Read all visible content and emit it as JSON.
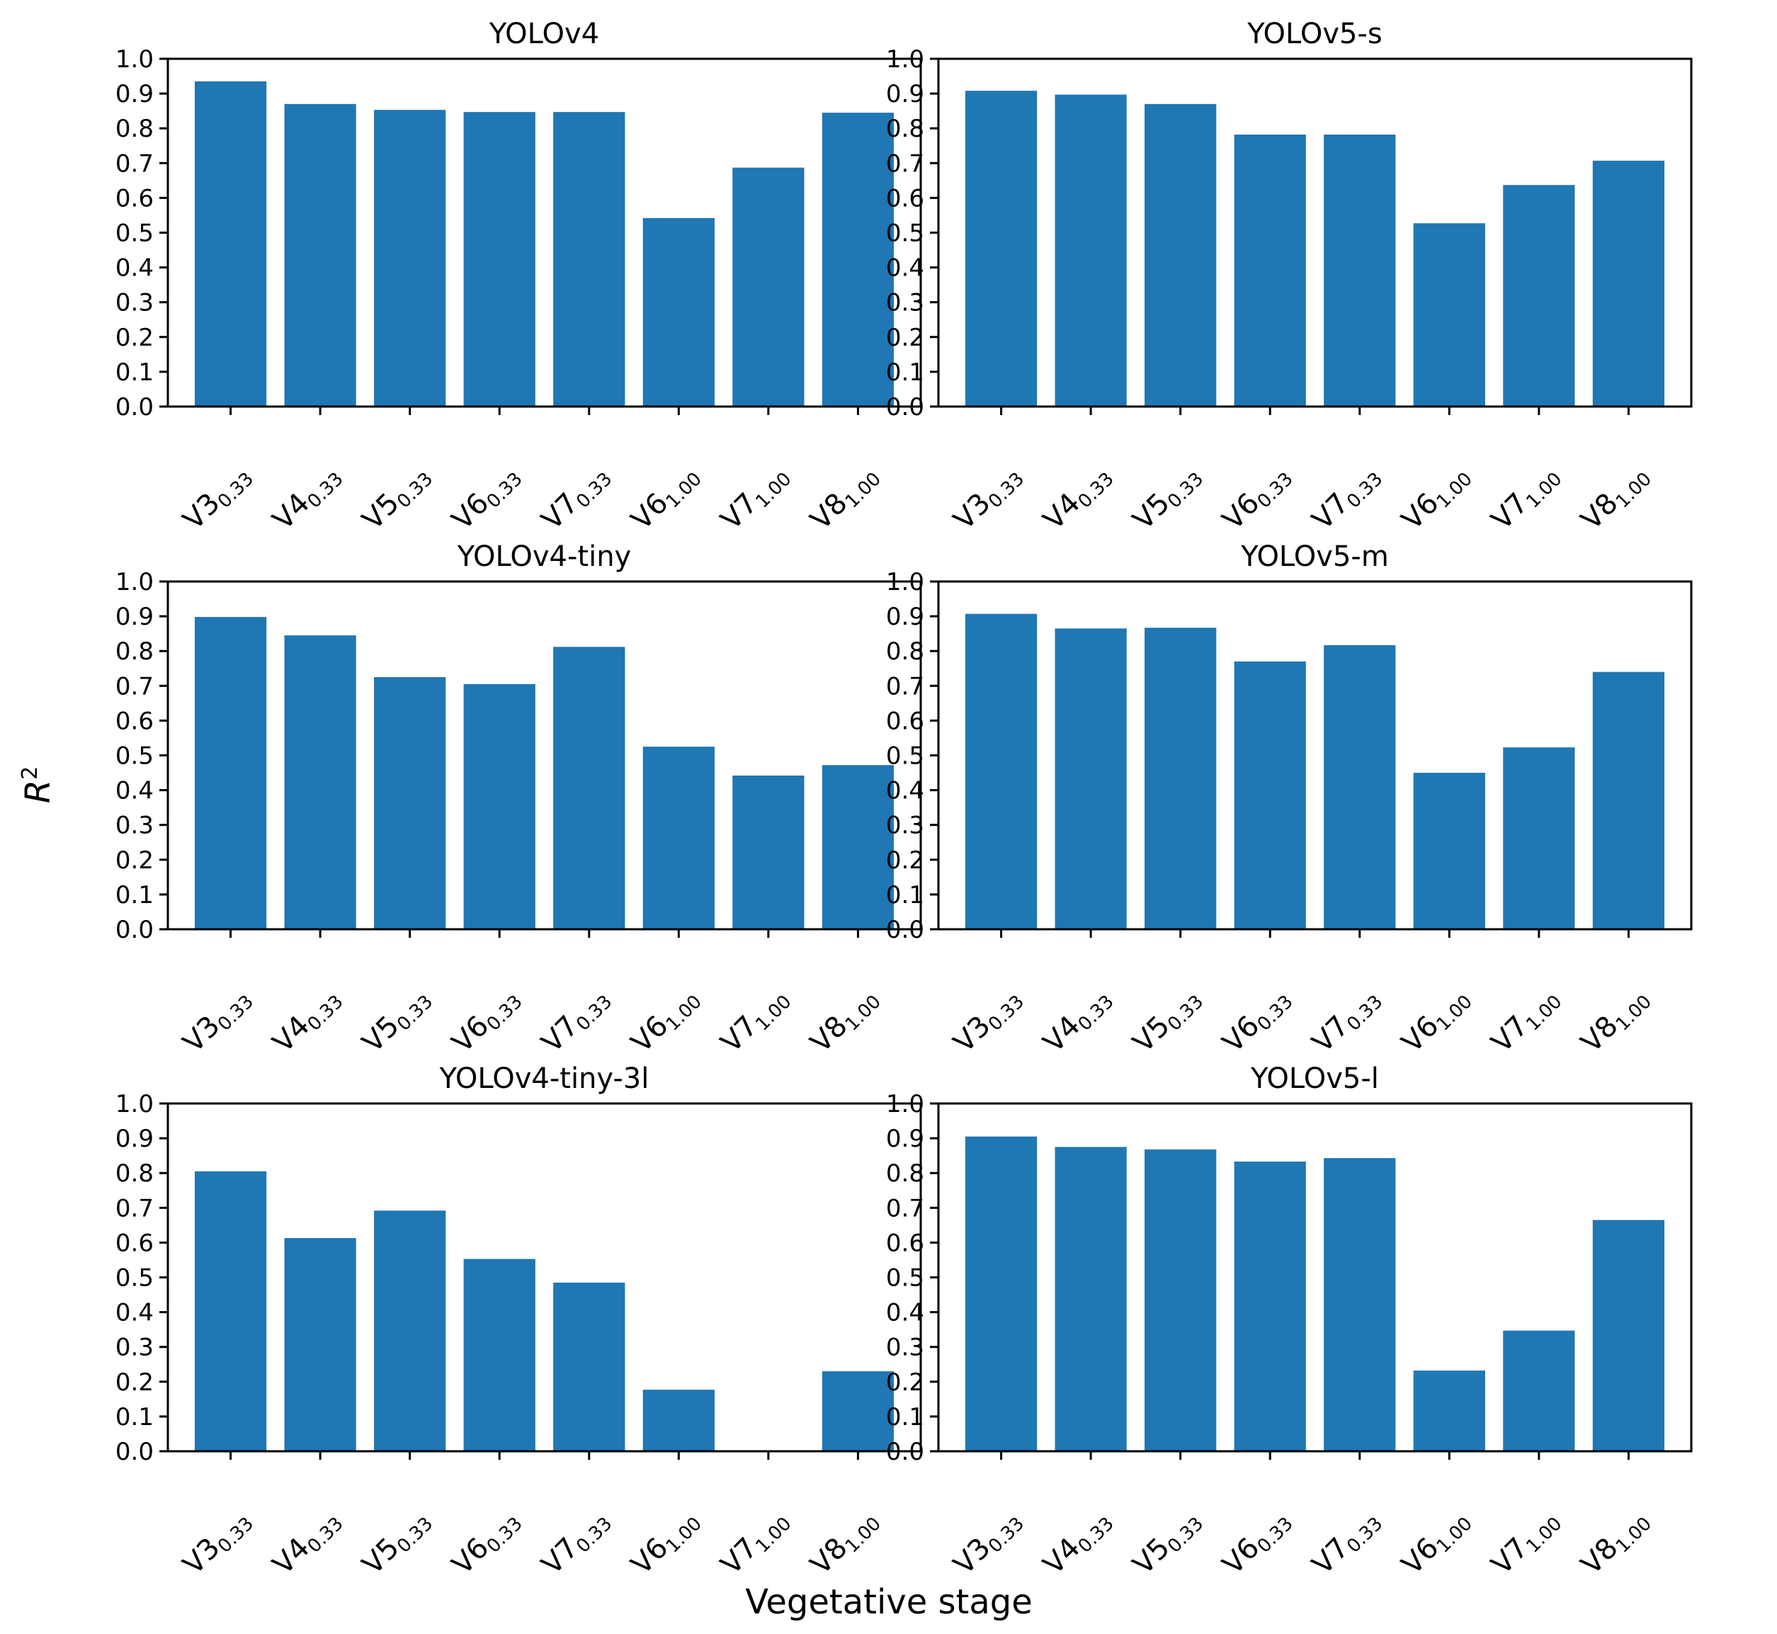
{
  "figure": {
    "xlabel": "Vegetative stage",
    "ylabel_base": "R",
    "ylabel_sup": "2",
    "bar_color": "#1f77b4"
  },
  "chart_data": [
    {
      "type": "bar",
      "title": "YOLOv4",
      "categories": [
        {
          "main": "V3",
          "sub": "0.33"
        },
        {
          "main": "V4",
          "sub": "0.33"
        },
        {
          "main": "V5",
          "sub": "0.33"
        },
        {
          "main": "V6",
          "sub": "0.33"
        },
        {
          "main": "V7",
          "sub": "0.33"
        },
        {
          "main": "V6",
          "sub": "1.00"
        },
        {
          "main": "V7",
          "sub": "1.00"
        },
        {
          "main": "V8",
          "sub": "1.00"
        }
      ],
      "values": [
        0.935,
        0.87,
        0.853,
        0.847,
        0.847,
        0.542,
        0.687,
        0.845
      ],
      "ylim": [
        0,
        1.0
      ],
      "yticks": [
        "0.0",
        "0.1",
        "0.2",
        "0.3",
        "0.4",
        "0.5",
        "0.6",
        "0.7",
        "0.8",
        "0.9",
        "1.0"
      ],
      "xlabel": "",
      "ylabel": "R2"
    },
    {
      "type": "bar",
      "title": "YOLOv5-s",
      "categories": [
        {
          "main": "V3",
          "sub": "0.33"
        },
        {
          "main": "V4",
          "sub": "0.33"
        },
        {
          "main": "V5",
          "sub": "0.33"
        },
        {
          "main": "V6",
          "sub": "0.33"
        },
        {
          "main": "V7",
          "sub": "0.33"
        },
        {
          "main": "V6",
          "sub": "1.00"
        },
        {
          "main": "V7",
          "sub": "1.00"
        },
        {
          "main": "V8",
          "sub": "1.00"
        }
      ],
      "values": [
        0.908,
        0.897,
        0.87,
        0.782,
        0.782,
        0.527,
        0.637,
        0.707
      ],
      "ylim": [
        0,
        1.0
      ],
      "yticks": [
        "0.0",
        "0.1",
        "0.2",
        "0.3",
        "0.4",
        "0.5",
        "0.6",
        "0.7",
        "0.8",
        "0.9",
        "1.0"
      ],
      "xlabel": "",
      "ylabel": "R2"
    },
    {
      "type": "bar",
      "title": "YOLOv4-tiny",
      "categories": [
        {
          "main": "V3",
          "sub": "0.33"
        },
        {
          "main": "V4",
          "sub": "0.33"
        },
        {
          "main": "V5",
          "sub": "0.33"
        },
        {
          "main": "V6",
          "sub": "0.33"
        },
        {
          "main": "V7",
          "sub": "0.33"
        },
        {
          "main": "V6",
          "sub": "1.00"
        },
        {
          "main": "V7",
          "sub": "1.00"
        },
        {
          "main": "V8",
          "sub": "1.00"
        }
      ],
      "values": [
        0.898,
        0.845,
        0.725,
        0.705,
        0.812,
        0.525,
        0.442,
        0.472
      ],
      "ylim": [
        0,
        1.0
      ],
      "yticks": [
        "0.0",
        "0.1",
        "0.2",
        "0.3",
        "0.4",
        "0.5",
        "0.6",
        "0.7",
        "0.8",
        "0.9",
        "1.0"
      ],
      "xlabel": "",
      "ylabel": "R2"
    },
    {
      "type": "bar",
      "title": "YOLOv5-m",
      "categories": [
        {
          "main": "V3",
          "sub": "0.33"
        },
        {
          "main": "V4",
          "sub": "0.33"
        },
        {
          "main": "V5",
          "sub": "0.33"
        },
        {
          "main": "V6",
          "sub": "0.33"
        },
        {
          "main": "V7",
          "sub": "0.33"
        },
        {
          "main": "V6",
          "sub": "1.00"
        },
        {
          "main": "V7",
          "sub": "1.00"
        },
        {
          "main": "V8",
          "sub": "1.00"
        }
      ],
      "values": [
        0.907,
        0.865,
        0.867,
        0.77,
        0.817,
        0.45,
        0.523,
        0.74
      ],
      "ylim": [
        0,
        1.0
      ],
      "yticks": [
        "0.0",
        "0.1",
        "0.2",
        "0.3",
        "0.4",
        "0.5",
        "0.6",
        "0.7",
        "0.8",
        "0.9",
        "1.0"
      ],
      "xlabel": "",
      "ylabel": "R2"
    },
    {
      "type": "bar",
      "title": "YOLOv4-tiny-3l",
      "categories": [
        {
          "main": "V3",
          "sub": "0.33"
        },
        {
          "main": "V4",
          "sub": "0.33"
        },
        {
          "main": "V5",
          "sub": "0.33"
        },
        {
          "main": "V6",
          "sub": "0.33"
        },
        {
          "main": "V7",
          "sub": "0.33"
        },
        {
          "main": "V6",
          "sub": "1.00"
        },
        {
          "main": "V7",
          "sub": "1.00"
        },
        {
          "main": "V8",
          "sub": "1.00"
        }
      ],
      "values": [
        0.805,
        0.613,
        0.692,
        0.553,
        0.485,
        0.177,
        0.0,
        0.23
      ],
      "ylim": [
        0,
        1.0
      ],
      "yticks": [
        "0.0",
        "0.1",
        "0.2",
        "0.3",
        "0.4",
        "0.5",
        "0.6",
        "0.7",
        "0.8",
        "0.9",
        "1.0"
      ],
      "xlabel": "",
      "ylabel": "R2"
    },
    {
      "type": "bar",
      "title": "YOLOv5-l",
      "categories": [
        {
          "main": "V3",
          "sub": "0.33"
        },
        {
          "main": "V4",
          "sub": "0.33"
        },
        {
          "main": "V5",
          "sub": "0.33"
        },
        {
          "main": "V6",
          "sub": "0.33"
        },
        {
          "main": "V7",
          "sub": "0.33"
        },
        {
          "main": "V6",
          "sub": "1.00"
        },
        {
          "main": "V7",
          "sub": "1.00"
        },
        {
          "main": "V8",
          "sub": "1.00"
        }
      ],
      "values": [
        0.905,
        0.875,
        0.868,
        0.833,
        0.843,
        0.232,
        0.347,
        0.665
      ],
      "ylim": [
        0,
        1.0
      ],
      "yticks": [
        "0.0",
        "0.1",
        "0.2",
        "0.3",
        "0.4",
        "0.5",
        "0.6",
        "0.7",
        "0.8",
        "0.9",
        "1.0"
      ],
      "xlabel": "",
      "ylabel": "R2"
    }
  ]
}
